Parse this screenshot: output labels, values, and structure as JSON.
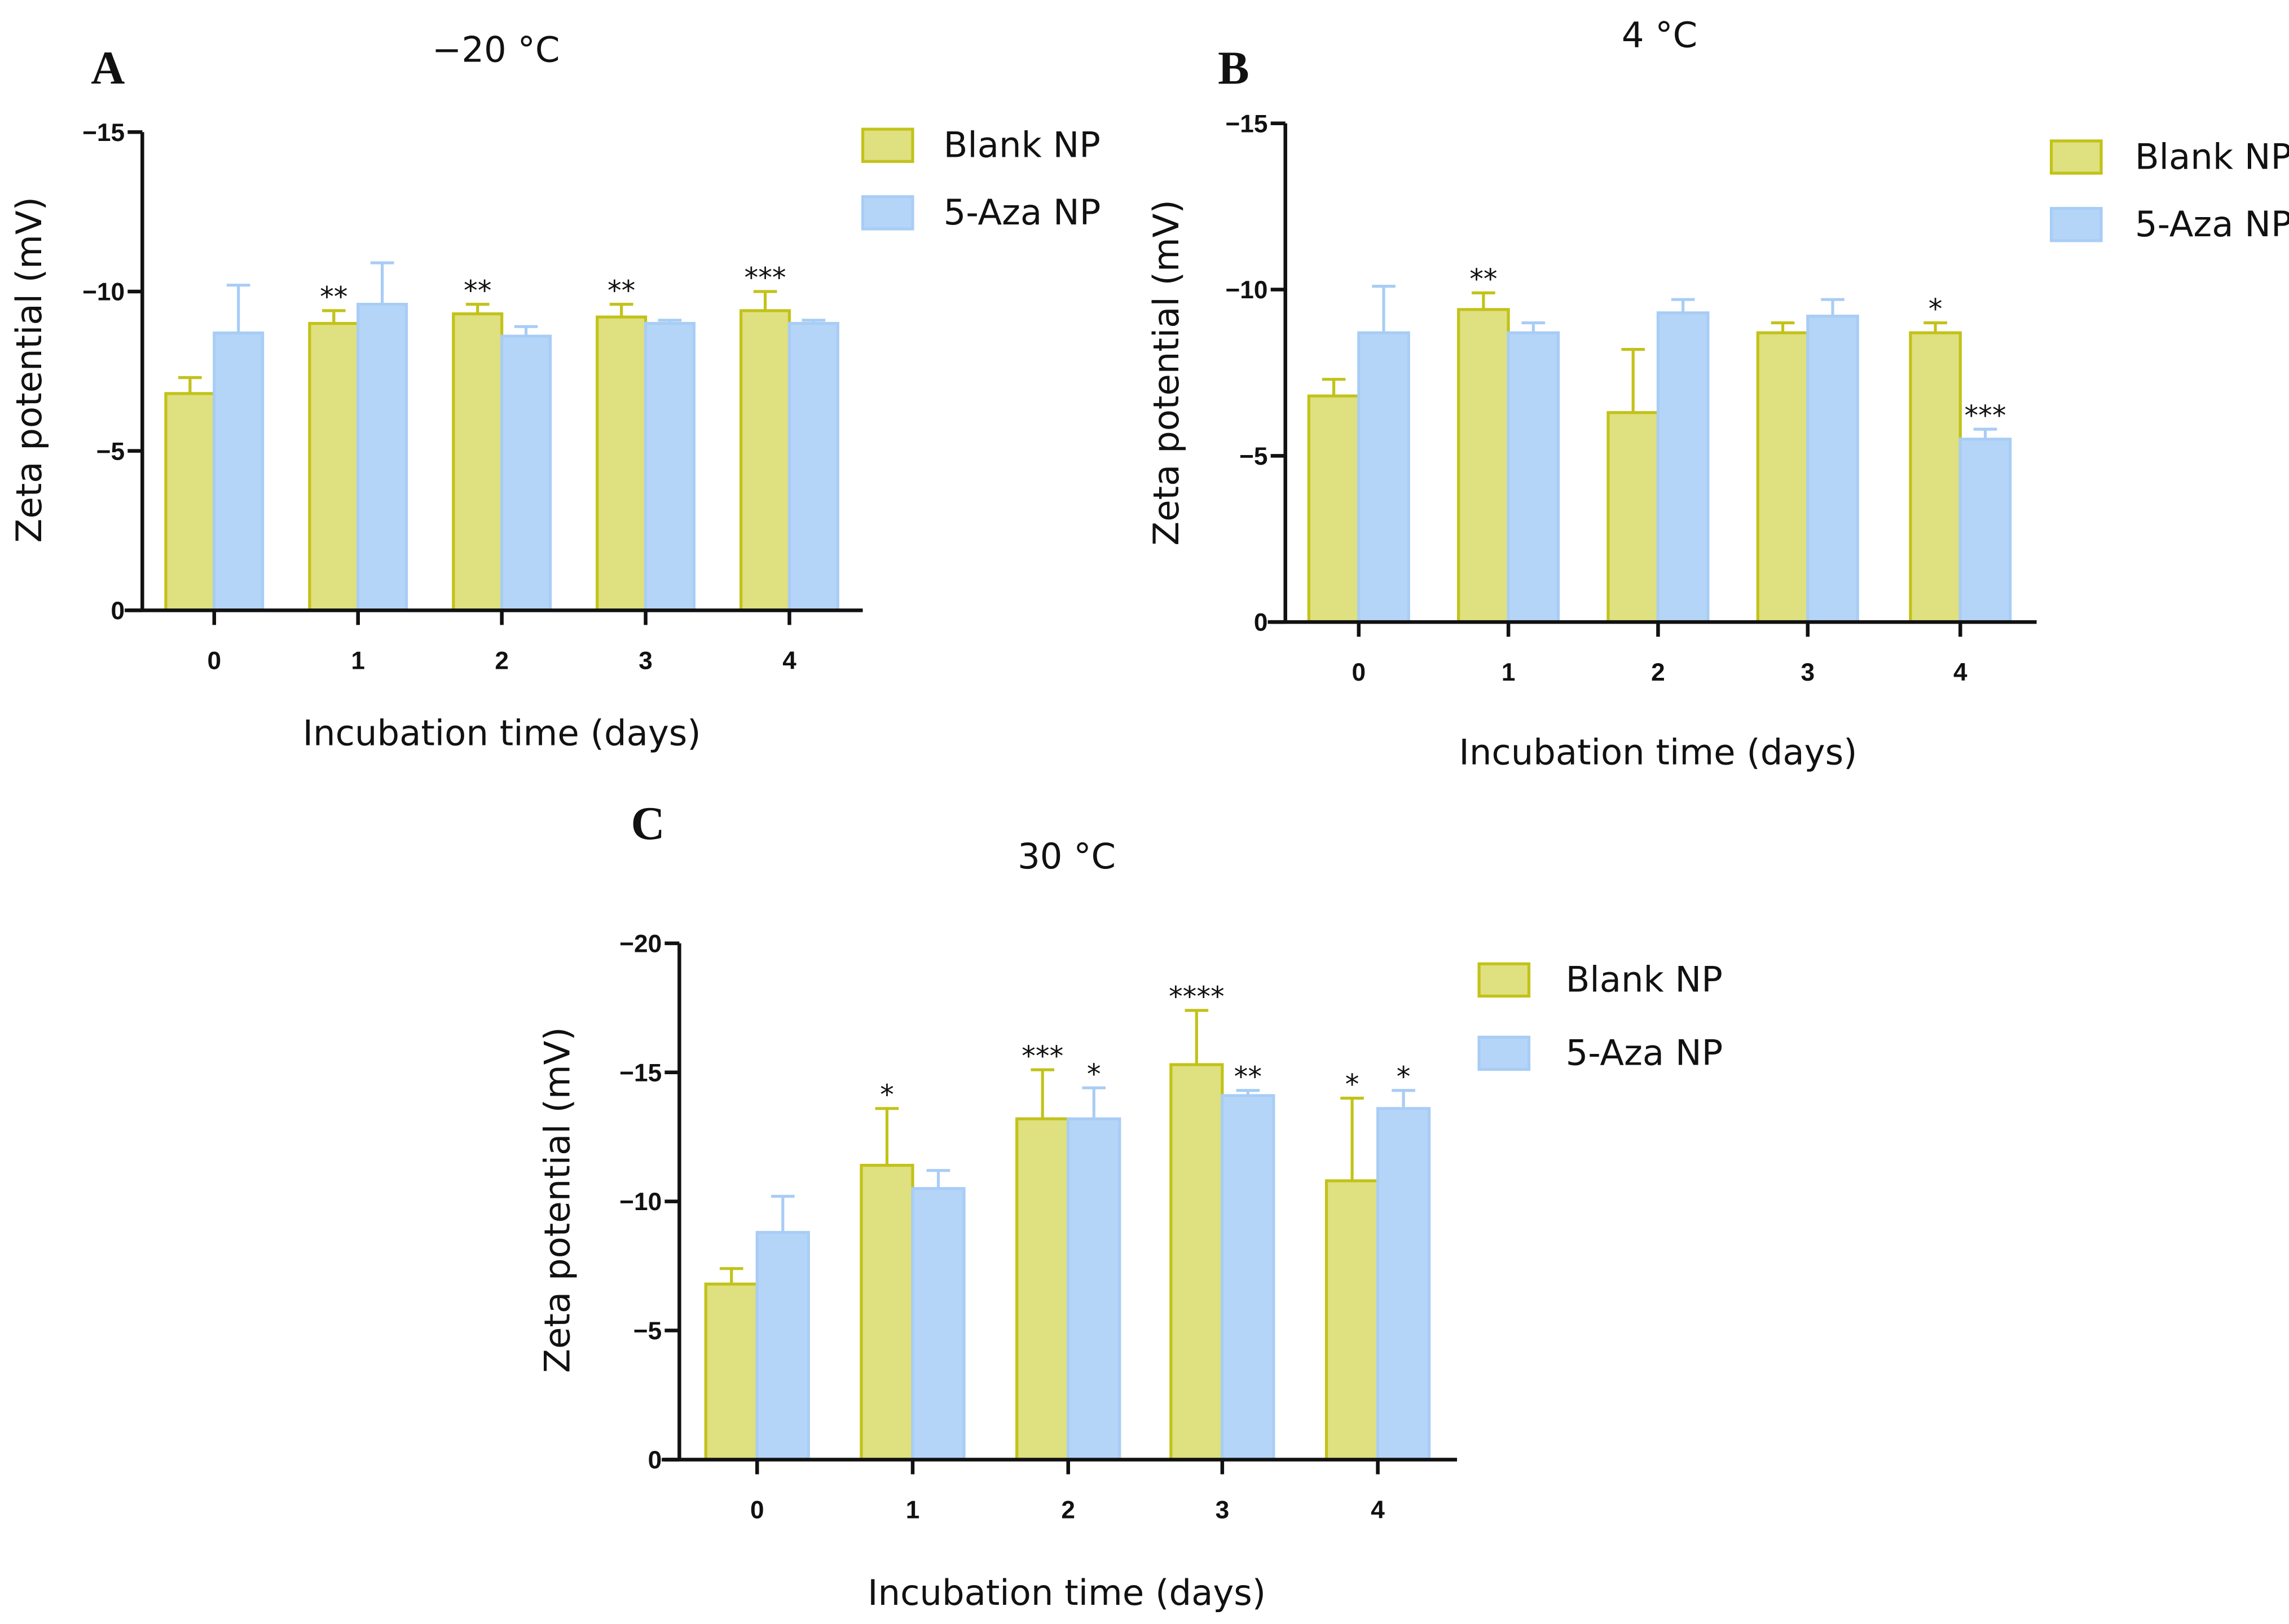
{
  "colors": {
    "blank_fill": "#dfe07f",
    "blank_stroke": "#c2c21a",
    "aza_fill": "#b5d5f8",
    "aza_stroke": "#a8cdf5",
    "axis": "#111111"
  },
  "chart_data": [
    {
      "type": "bar",
      "panel_letter": "A",
      "title": "−20 °C",
      "xlabel": "Incubation time (days)",
      "ylabel": "Zeta potential (mV)",
      "categories": [
        "0",
        "1",
        "2",
        "3",
        "4"
      ],
      "ylim": [
        0,
        -15
      ],
      "yticks": [
        "0",
        "−5",
        "−10",
        "−15"
      ],
      "series": [
        {
          "name": "Blank NP",
          "values": [
            -6.8,
            -9.0,
            -9.3,
            -9.2,
            -9.4
          ],
          "error_top": [
            -7.3,
            -9.4,
            -9.6,
            -9.6,
            -10.0
          ],
          "significance": [
            "",
            "**",
            "**",
            "**",
            "***"
          ]
        },
        {
          "name": "5-Aza NP",
          "values": [
            -8.7,
            -9.6,
            -8.6,
            -9.0,
            -9.0
          ],
          "error_top": [
            -10.2,
            -10.9,
            -8.9,
            -9.1,
            -9.1
          ],
          "significance": [
            "",
            "",
            "",
            "",
            ""
          ]
        }
      ],
      "legend": "top-right"
    },
    {
      "type": "bar",
      "panel_letter": "B",
      "title": "4 °C",
      "xlabel": "Incubation time (days)",
      "ylabel": "Zeta potential (mV)",
      "categories": [
        "0",
        "1",
        "2",
        "3",
        "4"
      ],
      "ylim": [
        0,
        -15
      ],
      "yticks": [
        "0",
        "−5",
        "−10",
        "−15"
      ],
      "series": [
        {
          "name": "Blank NP",
          "values": [
            -6.8,
            -9.4,
            -6.3,
            -8.7,
            -8.7
          ],
          "error_top": [
            -7.3,
            -9.9,
            -8.2,
            -9.0,
            -9.0
          ],
          "significance": [
            "",
            "**",
            "",
            "",
            "*"
          ]
        },
        {
          "name": "5-Aza NP",
          "values": [
            -8.7,
            -8.7,
            -9.3,
            -9.2,
            -5.5
          ],
          "error_top": [
            -10.1,
            -9.0,
            -9.7,
            -9.7,
            -5.8
          ],
          "significance": [
            "",
            "",
            "",
            "",
            "***"
          ]
        }
      ],
      "legend": "top-right"
    },
    {
      "type": "bar",
      "panel_letter": "C",
      "title": "30 °C",
      "xlabel": "Incubation time (days)",
      "ylabel": "Zeta potential (mV)",
      "categories": [
        "0",
        "1",
        "2",
        "3",
        "4"
      ],
      "ylim": [
        0,
        -20
      ],
      "yticks": [
        "0",
        "−5",
        "−10",
        "−15",
        "−20"
      ],
      "series": [
        {
          "name": "Blank NP",
          "values": [
            -6.8,
            -11.4,
            -13.2,
            -15.3,
            -10.8
          ],
          "error_top": [
            -7.4,
            -13.6,
            -15.1,
            -17.4,
            -14.0
          ],
          "significance": [
            "",
            "*",
            "***",
            "****",
            "*"
          ]
        },
        {
          "name": "5-Aza NP",
          "values": [
            -8.8,
            -10.5,
            -13.2,
            -14.1,
            -13.6
          ],
          "error_top": [
            -10.2,
            -11.2,
            -14.4,
            -14.3,
            -14.3
          ],
          "significance": [
            "",
            "",
            "*",
            "**",
            "*"
          ]
        }
      ],
      "legend": "top-right"
    }
  ]
}
